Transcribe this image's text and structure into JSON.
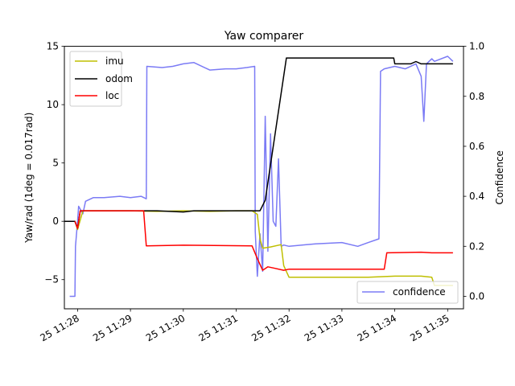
{
  "chart_data": {
    "type": "line",
    "title": "Yaw comparer",
    "ylabel": "Yaw/rad (1deg = 0.017rad)",
    "y2label": "Confidence",
    "xlabel": "",
    "xlim": [
      27.75,
      35.3
    ],
    "ylim": [
      -7.5,
      15.0
    ],
    "y2lim": [
      -0.05,
      1.0
    ],
    "x_ticks": [
      28,
      29,
      30,
      31,
      32,
      33,
      34,
      35
    ],
    "x_tick_labels": [
      "25 11:28",
      "25 11:29",
      "25 11:30",
      "25 11:31",
      "25 11:32",
      "25 11:33",
      "25 11:34",
      "25 11:35"
    ],
    "y_ticks": [
      -5,
      0,
      5,
      10,
      15
    ],
    "y_tick_labels": [
      "−5",
      "0",
      "5",
      "10",
      "15"
    ],
    "y2_ticks": [
      0.0,
      0.2,
      0.4,
      0.6,
      0.8,
      1.0
    ],
    "y2_tick_labels": [
      "0.0",
      "0.2",
      "0.4",
      "0.6",
      "0.8",
      "1.0"
    ],
    "grid": false,
    "legend_left": {
      "placement": "upper-left",
      "entries": [
        "imu",
        "odom",
        "loc"
      ]
    },
    "legend_right": {
      "placement": "lower-right",
      "entries": [
        "confidence"
      ]
    },
    "series": [
      {
        "name": "imu",
        "axis": "left",
        "color": "#bfbf00",
        "x": [
          27.75,
          27.95,
          28.0,
          28.1,
          29.0,
          29.5,
          30.0,
          30.5,
          31.0,
          31.3,
          31.4,
          31.45,
          31.5,
          31.65,
          31.85,
          31.9,
          32.0,
          32.5,
          33.0,
          33.5,
          34.0,
          34.5,
          34.7,
          34.75,
          35.0,
          35.1
        ],
        "y": [
          0.0,
          0.0,
          -0.7,
          0.9,
          0.9,
          0.85,
          0.9,
          0.85,
          0.9,
          0.9,
          0.6,
          -1.5,
          -2.3,
          -2.2,
          -2.0,
          -3.8,
          -4.8,
          -4.8,
          -4.8,
          -4.8,
          -4.7,
          -4.7,
          -4.8,
          -5.5,
          -5.5,
          -5.5
        ]
      },
      {
        "name": "odom",
        "axis": "left",
        "color": "#000000",
        "x": [
          27.75,
          27.95,
          28.0,
          28.05,
          28.5,
          29.0,
          29.5,
          30.0,
          30.2,
          30.5,
          31.0,
          31.3,
          31.45,
          31.55,
          31.95,
          33.0,
          33.98,
          34.0,
          34.3,
          34.4,
          34.5,
          35.1
        ],
        "y": [
          0.0,
          0.0,
          -0.6,
          0.9,
          0.9,
          0.9,
          0.9,
          0.8,
          0.9,
          0.9,
          0.9,
          0.9,
          0.9,
          1.8,
          14.0,
          14.0,
          14.0,
          13.5,
          13.5,
          13.7,
          13.5,
          13.5
        ]
      },
      {
        "name": "loc",
        "axis": "left",
        "color": "#ff0000",
        "x": [
          27.95,
          28.0,
          28.05,
          29.25,
          29.3,
          30.0,
          31.3,
          31.4,
          31.5,
          31.6,
          31.7,
          31.9,
          32.0,
          33.0,
          33.8,
          33.85,
          34.5,
          34.7,
          35.1
        ],
        "y": [
          0.0,
          -0.6,
          0.9,
          0.9,
          -2.1,
          -2.05,
          -2.1,
          -3.2,
          -4.2,
          -3.9,
          -4.0,
          -4.2,
          -4.1,
          -4.1,
          -4.1,
          -2.7,
          -2.65,
          -2.7,
          -2.7
        ]
      },
      {
        "name": "confidence",
        "axis": "right",
        "color": "#7b7bf5",
        "x": [
          27.85,
          27.86,
          27.95,
          27.96,
          28.0,
          28.02,
          28.1,
          28.15,
          28.3,
          28.5,
          28.8,
          29.0,
          29.2,
          29.3,
          29.31,
          29.6,
          29.8,
          30.0,
          30.2,
          30.5,
          30.8,
          31.0,
          31.2,
          31.35,
          31.36,
          31.4,
          31.45,
          31.5,
          31.55,
          31.6,
          31.65,
          31.7,
          31.75,
          31.8,
          31.85,
          31.9,
          32.0,
          32.5,
          33.0,
          33.3,
          33.5,
          33.7,
          33.73,
          33.8,
          34.0,
          34.2,
          34.4,
          34.5,
          34.55,
          34.6,
          34.7,
          34.75,
          35.0,
          35.1
        ],
        "y": [
          0.0,
          0.0,
          0.0,
          0.2,
          0.3,
          0.36,
          0.33,
          0.38,
          0.395,
          0.395,
          0.4,
          0.395,
          0.4,
          0.39,
          0.92,
          0.915,
          0.92,
          0.93,
          0.935,
          0.905,
          0.91,
          0.91,
          0.915,
          0.92,
          0.26,
          0.08,
          0.25,
          0.1,
          0.72,
          0.18,
          0.65,
          0.3,
          0.28,
          0.55,
          0.2,
          0.205,
          0.2,
          0.21,
          0.215,
          0.2,
          0.215,
          0.23,
          0.9,
          0.91,
          0.92,
          0.91,
          0.93,
          0.88,
          0.7,
          0.93,
          0.95,
          0.94,
          0.96,
          0.94
        ]
      }
    ]
  }
}
